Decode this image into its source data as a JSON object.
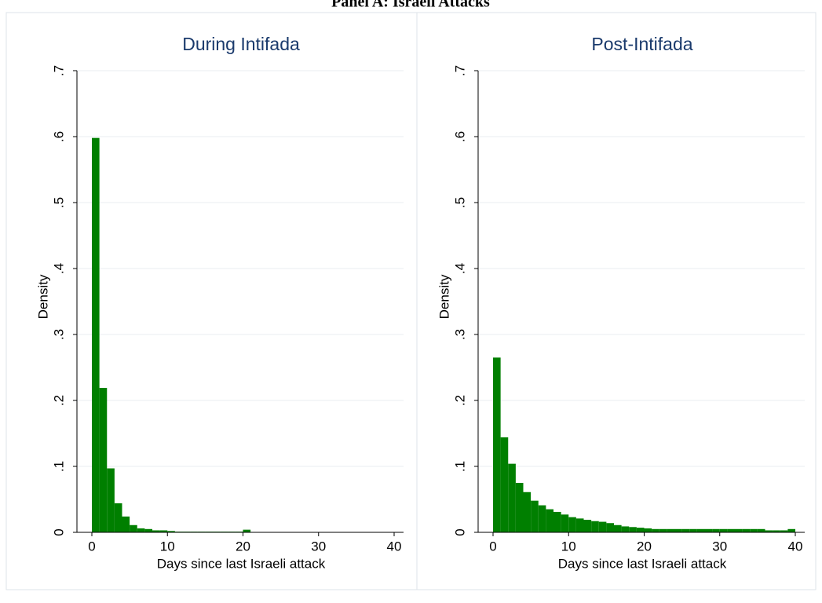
{
  "title": "Panel A: Israeli Attacks",
  "chart_data": [
    {
      "type": "histogram",
      "title": "During Intifada",
      "x_label": "Days since last Israeli attack",
      "y_label": "Density",
      "color": "#007f00",
      "grid": true,
      "bins": [
        0,
        1,
        2,
        3,
        4,
        5,
        6,
        7,
        8,
        9,
        10,
        11,
        12,
        13,
        14,
        15,
        16,
        17,
        18,
        19,
        20,
        21,
        22,
        23,
        24,
        25,
        26,
        27,
        28,
        29,
        30,
        31,
        32,
        33,
        34,
        35,
        36,
        37,
        38,
        39,
        40
      ],
      "values": [
        0.598,
        0.219,
        0.097,
        0.044,
        0.024,
        0.011,
        0.006,
        0.005,
        0.003,
        0.003,
        0.002,
        0.001,
        0.001,
        0.001,
        0.001,
        0.001,
        0.001,
        0.001,
        0.001,
        0.001,
        0.004,
        0,
        0,
        0,
        0,
        0,
        0,
        0,
        0,
        0,
        0,
        0,
        0,
        0,
        0,
        0,
        0,
        0,
        0,
        0
      ],
      "xlim": [
        0,
        40
      ],
      "xticks": [
        0,
        10,
        20,
        30,
        40
      ],
      "ylim": [
        0,
        0.7
      ],
      "yticks": [
        0,
        {
          "value": 0.1,
          "label": ".1"
        },
        {
          "value": 0.2,
          "label": ".2"
        },
        {
          "value": 0.3,
          "label": ".3"
        },
        {
          "value": 0.4,
          "label": ".4"
        },
        {
          "value": 0.5,
          "label": ".5"
        },
        {
          "value": 0.6,
          "label": ".6"
        },
        {
          "value": 0.7,
          "label": ".7"
        }
      ]
    },
    {
      "type": "histogram",
      "title": "Post-Intifada",
      "x_label": "Days since last Israeli attack",
      "y_label": "Density",
      "color": "#007f00",
      "grid": true,
      "bins": [
        0,
        1,
        2,
        3,
        4,
        5,
        6,
        7,
        8,
        9,
        10,
        11,
        12,
        13,
        14,
        15,
        16,
        17,
        18,
        19,
        20,
        21,
        22,
        23,
        24,
        25,
        26,
        27,
        28,
        29,
        30,
        31,
        32,
        33,
        34,
        35,
        36,
        37,
        38,
        39,
        40
      ],
      "values": [
        0.265,
        0.144,
        0.104,
        0.075,
        0.061,
        0.048,
        0.041,
        0.035,
        0.031,
        0.027,
        0.023,
        0.021,
        0.019,
        0.017,
        0.016,
        0.014,
        0.011,
        0.009,
        0.008,
        0.007,
        0.006,
        0.005,
        0.005,
        0.005,
        0.005,
        0.005,
        0.005,
        0.005,
        0.005,
        0.005,
        0.005,
        0.005,
        0.005,
        0.005,
        0.005,
        0.005,
        0.003,
        0.003,
        0.003,
        0.005
      ],
      "xlim": [
        0,
        40
      ],
      "xticks": [
        0,
        10,
        20,
        30,
        40
      ],
      "ylim": [
        0,
        0.7
      ],
      "yticks": [
        0,
        {
          "value": 0.1,
          "label": ".1"
        },
        {
          "value": 0.2,
          "label": ".2"
        },
        {
          "value": 0.3,
          "label": ".3"
        },
        {
          "value": 0.4,
          "label": ".4"
        },
        {
          "value": 0.5,
          "label": ".5"
        },
        {
          "value": 0.6,
          "label": ".6"
        },
        {
          "value": 0.7,
          "label": ".7"
        }
      ]
    }
  ]
}
